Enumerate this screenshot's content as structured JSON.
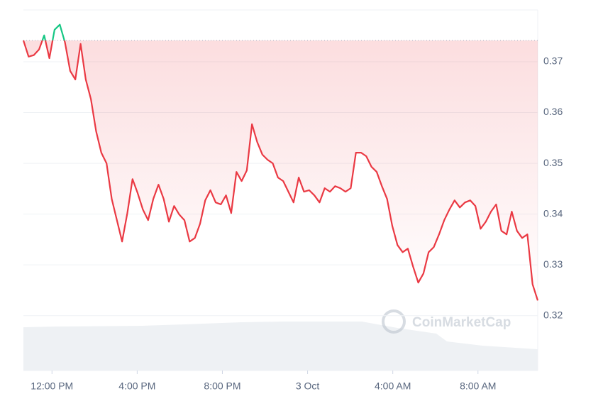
{
  "chart_data": {
    "type": "line",
    "watermark": "CoinMarketCap",
    "values": [
      0.3742,
      0.371,
      0.3713,
      0.3724,
      0.3752,
      0.3707,
      0.3763,
      0.3773,
      0.3738,
      0.3682,
      0.3665,
      0.3735,
      0.3665,
      0.3626,
      0.3563,
      0.3521,
      0.35,
      0.343,
      0.3388,
      0.3346,
      0.3402,
      0.3469,
      0.3441,
      0.3409,
      0.3388,
      0.343,
      0.3458,
      0.343,
      0.3385,
      0.3416,
      0.3399,
      0.3388,
      0.3346,
      0.3353,
      0.3381,
      0.3427,
      0.3447,
      0.3423,
      0.3419,
      0.3437,
      0.3402,
      0.3483,
      0.3465,
      0.3486,
      0.3577,
      0.3542,
      0.3517,
      0.3507,
      0.35,
      0.3472,
      0.3465,
      0.3444,
      0.3423,
      0.3472,
      0.3444,
      0.3447,
      0.3437,
      0.3423,
      0.3451,
      0.3444,
      0.3455,
      0.3451,
      0.3444,
      0.3451,
      0.3521,
      0.3521,
      0.3514,
      0.3493,
      0.3483,
      0.3455,
      0.343,
      0.3377,
      0.3339,
      0.3325,
      0.3332,
      0.3297,
      0.3265,
      0.3283,
      0.3325,
      0.3335,
      0.336,
      0.3388,
      0.3409,
      0.3427,
      0.3413,
      0.3423,
      0.3427,
      0.3416,
      0.3371,
      0.3385,
      0.3405,
      0.3419,
      0.3367,
      0.336,
      0.3405,
      0.3367,
      0.3353,
      0.336,
      0.3262,
      0.323
    ],
    "baseline": 0.3742,
    "up_color": "#16c784",
    "down_color": "#ea3943",
    "xlim": [
      0,
      99
    ],
    "xticks": [
      {
        "value": 5.5,
        "label": "12:00 PM"
      },
      {
        "value": 21.9,
        "label": "4:00 PM"
      },
      {
        "value": 38.3,
        "label": "8:00 PM"
      },
      {
        "value": 54.7,
        "label": "3 Oct"
      },
      {
        "value": 71.1,
        "label": "4:00 AM"
      },
      {
        "value": 87.5,
        "label": "8:00 AM"
      }
    ],
    "ylim": [
      0.3092,
      0.3802
    ],
    "yticks": [
      0.32,
      0.33,
      0.34,
      0.35,
      0.36,
      0.37
    ],
    "grid": true
  }
}
